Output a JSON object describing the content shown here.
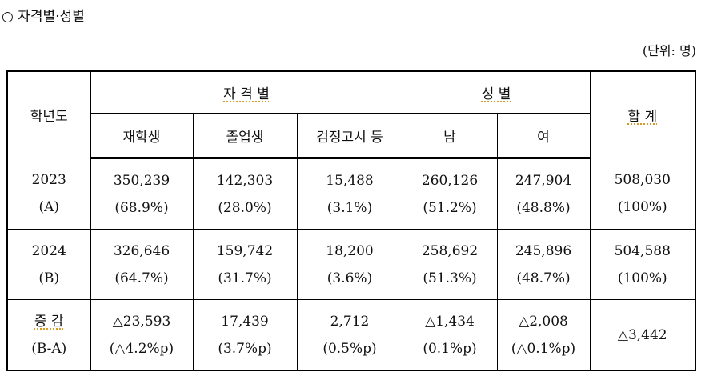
{
  "heading": "○ 자격별·성별",
  "unit": "(단위: 명)",
  "table": {
    "header": {
      "year": "학년도",
      "group_qual": "자 격 별",
      "group_sex": "성 별",
      "total": "합 계",
      "columns": [
        "재학생",
        "졸업생",
        "검정고시 등",
        "남",
        "여"
      ]
    },
    "rows": [
      {
        "label": [
          "2023",
          "(A)"
        ],
        "cells": [
          [
            "350,239",
            "(68.9%)"
          ],
          [
            "142,303",
            "(28.0%)"
          ],
          [
            "15,488",
            "(3.1%)"
          ],
          [
            "260,126",
            "(51.2%)"
          ],
          [
            "247,904",
            "(48.8%)"
          ],
          [
            "508,030",
            "(100%)"
          ]
        ]
      },
      {
        "label": [
          "2024",
          "(B)"
        ],
        "cells": [
          [
            "326,646",
            "(64.7%)"
          ],
          [
            "159,742",
            "(31.7%)"
          ],
          [
            "18,200",
            "(3.6%)"
          ],
          [
            "258,692",
            "(51.3%)"
          ],
          [
            "245,896",
            "(48.7%)"
          ],
          [
            "504,588",
            "(100%)"
          ]
        ]
      },
      {
        "label": [
          "증 감",
          "(B-A)"
        ],
        "cells": [
          [
            "△23,593",
            "(△4.2%p)"
          ],
          [
            "17,439",
            "(3.7%p)"
          ],
          [
            "2,712",
            "(0.5%p)"
          ],
          [
            "△1,434",
            "(0.1%p)"
          ],
          [
            "△2,008",
            "(△0.1%p)"
          ],
          [
            "△3,442"
          ]
        ]
      }
    ]
  }
}
